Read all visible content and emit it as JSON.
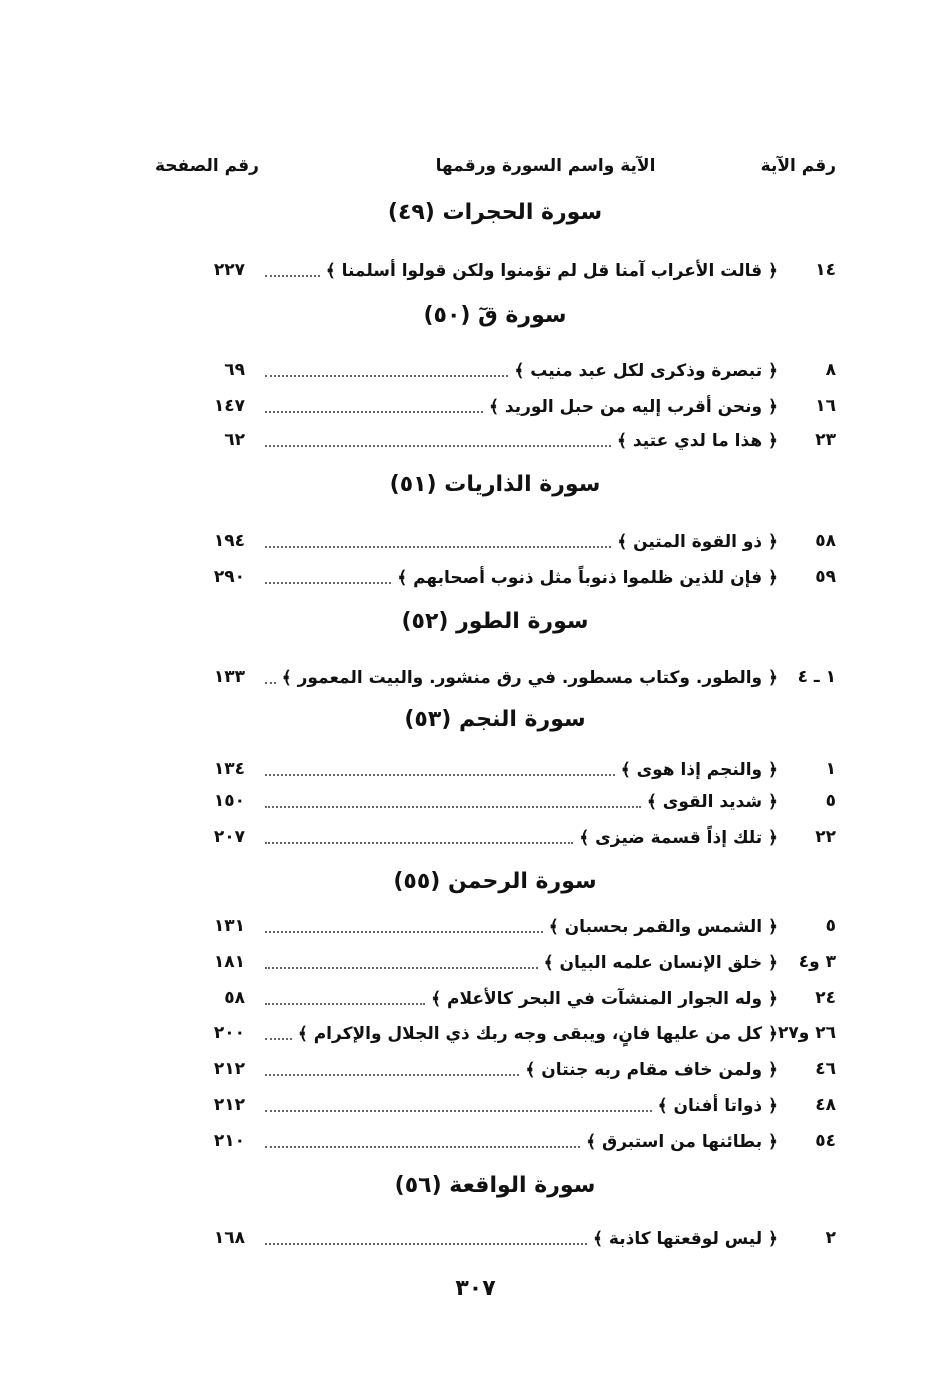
{
  "header": {
    "verse_number": "رقم الآية",
    "verse_and_surah": "الآية واسم السورة ورقمها",
    "page_number": "رقم الصفحة"
  },
  "sections": [
    {
      "title": "سورة الحجرات (٤٩)",
      "rows": [
        {
          "verse": "١٤",
          "text": "﴿ قالت الأعراب آمنا قل لم تؤمنوا ولكن قولوا أسلمنا ﴾",
          "page": "٢٢٧"
        }
      ]
    },
    {
      "title": "سورة قٓ (٥٠)",
      "rows": [
        {
          "verse": "٨",
          "text": "﴿ تبصرة وذكرى لكل عبد منيب ﴾",
          "page": "٦٩"
        },
        {
          "verse": "١٦",
          "text": "﴿ ونحن أقرب إليه من حبل الوريد ﴾",
          "page": "١٤٧"
        },
        {
          "verse": "٢٣",
          "text": "﴿ هذا ما لدي عتيد ﴾",
          "page": "٦٢"
        }
      ]
    },
    {
      "title": "سورة الذاريات (٥١)",
      "rows": [
        {
          "verse": "٥٨",
          "text": "﴿ ذو القوة المتين ﴾",
          "page": "١٩٤"
        },
        {
          "verse": "٥٩",
          "text": "﴿ فإن للذين ظلموا ذنوباً مثل ذنوب أصحابهم ﴾",
          "page": "٢٩٠"
        }
      ]
    },
    {
      "title": "سورة الطور (٥٢)",
      "rows": [
        {
          "verse": "١ ـ ٤",
          "text": "﴿ والطور. وكتاب مسطور. في رق منشور. والبيت المعمور ﴾",
          "page": "١٣٣"
        }
      ]
    },
    {
      "title": "سورة النجم (٥٣)",
      "rows": [
        {
          "verse": "١",
          "text": "﴿ والنجم إذا هوى ﴾",
          "page": "١٣٤"
        },
        {
          "verse": "٥",
          "text": "﴿ شديد القوى ﴾",
          "page": "١٥٠"
        },
        {
          "verse": "٢٢",
          "text": "﴿ تلك إذاً قسمة ضيزى ﴾",
          "page": "٢٠٧"
        }
      ]
    },
    {
      "title": "سورة الرحمن (٥٥)",
      "rows": [
        {
          "verse": "٥",
          "text": "﴿ الشمس والقمر بحسبان ﴾",
          "page": "١٣١"
        },
        {
          "verse": "٣ و٤",
          "text": "﴿ خلق الإنسان  علمه البيان ﴾",
          "page": "١٨١"
        },
        {
          "verse": "٢٤",
          "text": "﴿ وله الجوار المنشآت في البحر كالأعلام ﴾",
          "page": "٥٨"
        },
        {
          "verse": "٢٦ و٢٧",
          "text": "﴿ كل من عليها فانٍ، ويبقى وجه ربك ذي الجلال والإكرام ﴾",
          "page": "٢٠٠"
        },
        {
          "verse": "٤٦",
          "text": "﴿ ولمن خاف مقام ربه جنتان ﴾",
          "page": "٢١٢"
        },
        {
          "verse": "٤٨",
          "text": "﴿ ذواتا أفنان ﴾",
          "page": "٢١٢"
        },
        {
          "verse": "٥٤",
          "text": "﴿ بطائنها من استبرق ﴾",
          "page": "٢١٠"
        }
      ]
    },
    {
      "title": "سورة الواقعة (٥٦)",
      "rows": [
        {
          "verse": "٢",
          "text": "﴿ ليس لوقعتها كاذبة ﴾",
          "page": "١٦٨"
        }
      ]
    }
  ],
  "page_number": "٣٠٧"
}
